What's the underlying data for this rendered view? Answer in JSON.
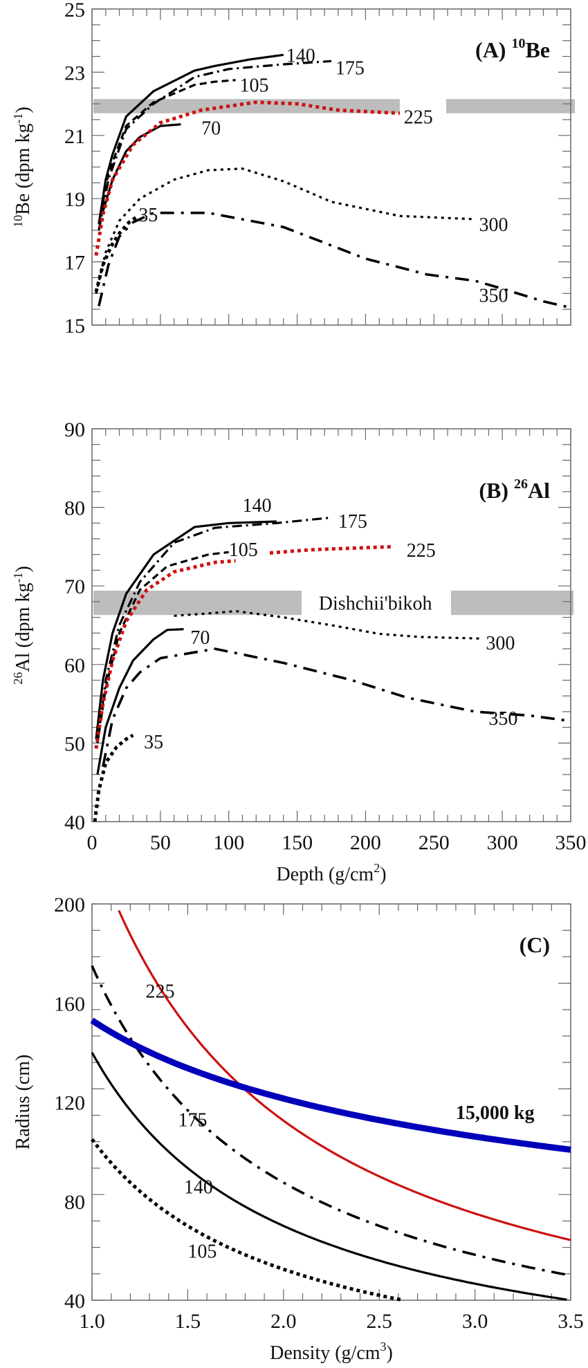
{
  "chart_data": [
    {
      "type": "line",
      "panel": "A",
      "title": "(A) ",
      "title_isotope_mass": "10",
      "title_isotope": "Be",
      "xlabel": "Depth (g/cm2)",
      "ylabel_mass": "10",
      "ylabel": "Be (dpm kg",
      "ylabel_exp": "-1",
      "ylabel_close": ")",
      "xlim": [
        0,
        350
      ],
      "ylim": [
        15,
        25
      ],
      "yticks": [
        15,
        17,
        19,
        21,
        23,
        25
      ],
      "ytick_labels": [
        "15",
        "17",
        "19",
        "21",
        "23",
        "25"
      ],
      "xticks": [
        0,
        50,
        100,
        150,
        200,
        250,
        300,
        350
      ],
      "band": {
        "y0": 21.7,
        "y1": 22.15,
        "color": "#bdbdbd",
        "label": ""
      },
      "series": [
        {
          "name": "140",
          "label": "140",
          "style": "solid",
          "color": "#000000",
          "points": [
            [
              5,
              18.2
            ],
            [
              10,
              19.6
            ],
            [
              15,
              20.4
            ],
            [
              25,
              21.6
            ],
            [
              45,
              22.4
            ],
            [
              75,
              23.05
            ],
            [
              90,
              23.2
            ],
            [
              115,
              23.4
            ],
            [
              140,
              23.55
            ]
          ],
          "label_at": [
            142,
            23.55
          ]
        },
        {
          "name": "175",
          "label": "175",
          "style": "dashdot",
          "color": "#000000",
          "points": [
            [
              5,
              18.0
            ],
            [
              12,
              19.6
            ],
            [
              25,
              21.2
            ],
            [
              45,
              22.0
            ],
            [
              75,
              22.85
            ],
            [
              100,
              23.1
            ],
            [
              140,
              23.25
            ],
            [
              175,
              23.35
            ]
          ],
          "label_at": [
            178,
            23.15
          ]
        },
        {
          "name": "105",
          "label": "105",
          "style": "dashed",
          "color": "#000000",
          "points": [
            [
              5,
              18.2
            ],
            [
              12,
              19.8
            ],
            [
              25,
              21.3
            ],
            [
              45,
              22.05
            ],
            [
              75,
              22.6
            ],
            [
              90,
              22.7
            ],
            [
              105,
              22.75
            ]
          ],
          "label_at": [
            108,
            22.6
          ]
        },
        {
          "name": "70",
          "label": "70",
          "style": "solid",
          "color": "#000000",
          "points": [
            [
              8,
              18.6
            ],
            [
              15,
              19.6
            ],
            [
              25,
              20.5
            ],
            [
              35,
              20.95
            ],
            [
              50,
              21.3
            ],
            [
              65,
              21.35
            ]
          ],
          "label_at": [
            80,
            21.25
          ]
        },
        {
          "name": "225",
          "label": "225",
          "style": "dotted-thick",
          "color": "#cc1111",
          "points": [
            [
              3,
              17.2
            ],
            [
              8,
              18.5
            ],
            [
              15,
              19.6
            ],
            [
              30,
              20.7
            ],
            [
              50,
              21.4
            ],
            [
              80,
              21.8
            ],
            [
              120,
              22.05
            ],
            [
              150,
              22.0
            ],
            [
              180,
              21.8
            ],
            [
              225,
              21.7
            ]
          ],
          "label_at": [
            228,
            21.6
          ]
        },
        {
          "name": "300",
          "label": "300",
          "style": "dotted",
          "color": "#000000",
          "points": [
            [
              3,
              16.0
            ],
            [
              10,
              17.3
            ],
            [
              20,
              18.3
            ],
            [
              35,
              19.0
            ],
            [
              60,
              19.6
            ],
            [
              85,
              19.9
            ],
            [
              110,
              19.95
            ],
            [
              140,
              19.55
            ],
            [
              175,
              18.9
            ],
            [
              225,
              18.45
            ],
            [
              280,
              18.35
            ]
          ],
          "label_at": [
            283,
            18.2
          ]
        },
        {
          "name": "350",
          "label": "350",
          "style": "dashdot-long",
          "color": "#000000",
          "points": [
            [
              5,
              15.6
            ],
            [
              12,
              16.9
            ],
            [
              20,
              17.8
            ],
            [
              30,
              18.25
            ],
            [
              45,
              18.55
            ],
            [
              85,
              18.55
            ],
            [
              140,
              18.1
            ],
            [
              200,
              17.1
            ],
            [
              245,
              16.6
            ],
            [
              280,
              16.4
            ],
            [
              300,
              16.15
            ],
            [
              330,
              15.75
            ],
            [
              350,
              15.55
            ]
          ],
          "label_at": [
            283,
            15.95
          ]
        },
        {
          "name": "35",
          "label": "35",
          "style": "dotted-thick",
          "color": "#000000",
          "points": [
            [
              3,
              16.05
            ],
            [
              8,
              16.9
            ],
            [
              14,
              17.5
            ],
            [
              20,
              17.9
            ],
            [
              27,
              18.25
            ],
            [
              32,
              18.4
            ]
          ],
          "label_at": [
            34,
            18.5
          ]
        }
      ]
    },
    {
      "type": "line",
      "panel": "B",
      "title": "(B) ",
      "title_isotope_mass": "26",
      "title_isotope": "Al",
      "xlabel": "Depth (g/cm",
      "xlabel_exp": "2",
      "xlabel_close": ")",
      "ylabel_mass": "26",
      "ylabel": "Al (dpm kg",
      "ylabel_exp": "-1",
      "ylabel_close": ")",
      "xlim": [
        0,
        350
      ],
      "ylim": [
        40,
        90
      ],
      "yticks": [
        40,
        50,
        60,
        70,
        80,
        90
      ],
      "ytick_labels": [
        "40",
        "50",
        "60",
        "70",
        "80",
        "90"
      ],
      "xticks": [
        0,
        50,
        100,
        150,
        200,
        250,
        300,
        350
      ],
      "xtick_labels": [
        "0",
        "50",
        "100",
        "150",
        "200",
        "250",
        "300",
        "350"
      ],
      "band": {
        "y0": 66.3,
        "y1": 69.4,
        "color": "#bdbdbd",
        "label": "Dishchii'bikoh"
      },
      "series": [
        {
          "name": "140",
          "label": "140",
          "style": "solid",
          "color": "#000000",
          "points": [
            [
              3,
              50.5
            ],
            [
              8,
              58
            ],
            [
              15,
              64
            ],
            [
              25,
              69
            ],
            [
              45,
              74
            ],
            [
              75,
              77.5
            ],
            [
              100,
              78
            ],
            [
              135,
              78.2
            ]
          ],
          "label_at": [
            110,
            80.3
          ]
        },
        {
          "name": "175",
          "label": "175",
          "style": "dashdot",
          "color": "#000000",
          "points": [
            [
              4,
              50
            ],
            [
              10,
              58
            ],
            [
              20,
              65
            ],
            [
              35,
              70.5
            ],
            [
              60,
              75.5
            ],
            [
              90,
              77.4
            ],
            [
              135,
              78
            ],
            [
              175,
              78.7
            ]
          ],
          "label_at": [
            180,
            78.3
          ]
        },
        {
          "name": "105",
          "label": "105",
          "style": "dashed",
          "color": "#000000",
          "points": [
            [
              4,
              50
            ],
            [
              10,
              57
            ],
            [
              20,
              64
            ],
            [
              35,
              69.5
            ],
            [
              55,
              72.5
            ],
            [
              85,
              74
            ],
            [
              100,
              74.3
            ]
          ],
          "label_at": [
            100,
            74.7
          ]
        },
        {
          "name": "225",
          "label": "225",
          "style": "dotted-thick",
          "color": "#cc1111",
          "points": [
            [
              3,
              49.3
            ],
            [
              8,
              55
            ],
            [
              15,
              60.5
            ],
            [
              25,
              65.5
            ],
            [
              40,
              69.5
            ],
            [
              60,
              71.8
            ],
            [
              90,
              73
            ],
            [
              105,
              73.2
            ]
          ],
          "segment2": [
            [
              130,
              74.2
            ],
            [
              160,
              74.6
            ],
            [
              220,
              75
            ]
          ],
          "label_at": [
            230,
            74.6
          ]
        },
        {
          "name": "70",
          "label": "70",
          "style": "solid",
          "color": "#000000",
          "points": [
            [
              4,
              46
            ],
            [
              10,
              52
            ],
            [
              20,
              57
            ],
            [
              30,
              60.5
            ],
            [
              45,
              63.2
            ],
            [
              55,
              64.4
            ],
            [
              67,
              64.5
            ]
          ],
          "label_at": [
            72,
            63.5
          ]
        },
        {
          "name": "300",
          "label": "300",
          "style": "dotted",
          "color": "#000000",
          "points": [
            [
              60,
              66.2
            ],
            [
              85,
              66.5
            ],
            [
              105,
              66.8
            ],
            [
              140,
              66
            ],
            [
              175,
              65
            ],
            [
              210,
              63.9
            ],
            [
              240,
              63.5
            ],
            [
              285,
              63.3
            ]
          ],
          "label_at": [
            288,
            62.8
          ]
        },
        {
          "name": "350",
          "label": "350",
          "style": "dashdot-long",
          "color": "#000000",
          "points": [
            [
              8,
              47
            ],
            [
              15,
              53
            ],
            [
              25,
              57
            ],
            [
              35,
              59
            ],
            [
              50,
              60.8
            ],
            [
              90,
              62
            ],
            [
              140,
              60.2
            ],
            [
              190,
              58
            ],
            [
              230,
              55.8
            ],
            [
              280,
              54
            ],
            [
              320,
              53.5
            ],
            [
              350,
              52.8
            ]
          ],
          "label_at": [
            290,
            53.2
          ]
        },
        {
          "name": "35",
          "label": "35",
          "style": "dotted-thick",
          "color": "#000000",
          "points": [
            [
              2,
              40
            ],
            [
              5,
              44
            ],
            [
              10,
              47.5
            ],
            [
              18,
              49.5
            ],
            [
              25,
              50.5
            ],
            [
              30,
              51
            ]
          ],
          "label_at": [
            38,
            50.2
          ]
        }
      ]
    },
    {
      "type": "line",
      "panel": "C",
      "title": "(C)",
      "xlabel": "Density (g/cm",
      "xlabel_exp": "3",
      "xlabel_close": ")",
      "ylabel": "Radius (cm)",
      "xlim": [
        1.0,
        3.5
      ],
      "ylim": [
        40,
        200
      ],
      "yticks": [
        40,
        80,
        120,
        160,
        200
      ],
      "ytick_labels": [
        "40",
        "80",
        "120",
        "160",
        "200"
      ],
      "xticks": [
        1.0,
        1.5,
        2.0,
        2.5,
        3.0,
        3.5
      ],
      "xtick_labels": [
        "1.0",
        "1.5",
        "2.0",
        "2.5",
        "3.0",
        "3.5"
      ],
      "series": [
        {
          "name": "225",
          "label": "225",
          "style": "solid",
          "color": "#cc1111",
          "depth": 225,
          "relation": "radius = depth / density",
          "label_at": [
            1.28,
            165
          ]
        },
        {
          "name": "175",
          "label": "175",
          "style": "dashdot-long",
          "color": "#000000",
          "depth": 175,
          "relation": "radius = depth / density",
          "label_at": [
            1.45,
            113
          ]
        },
        {
          "name": "140",
          "label": "140",
          "style": "solid",
          "color": "#000000",
          "depth": 140,
          "relation": "radius = depth / density",
          "label_at": [
            1.48,
            86
          ]
        },
        {
          "name": "105",
          "label": "105",
          "style": "dotted-thick",
          "color": "#000000",
          "depth": 105,
          "relation": "radius = depth / density",
          "label_at": [
            1.5,
            60
          ]
        },
        {
          "name": "15,000 kg",
          "label": "15,000 kg",
          "style": "solid-thick",
          "color": "#0000bb",
          "mass_kg": 15000,
          "relation": "sphere radius for fixed mass",
          "label_at": [
            2.9,
            116
          ]
        }
      ]
    }
  ]
}
